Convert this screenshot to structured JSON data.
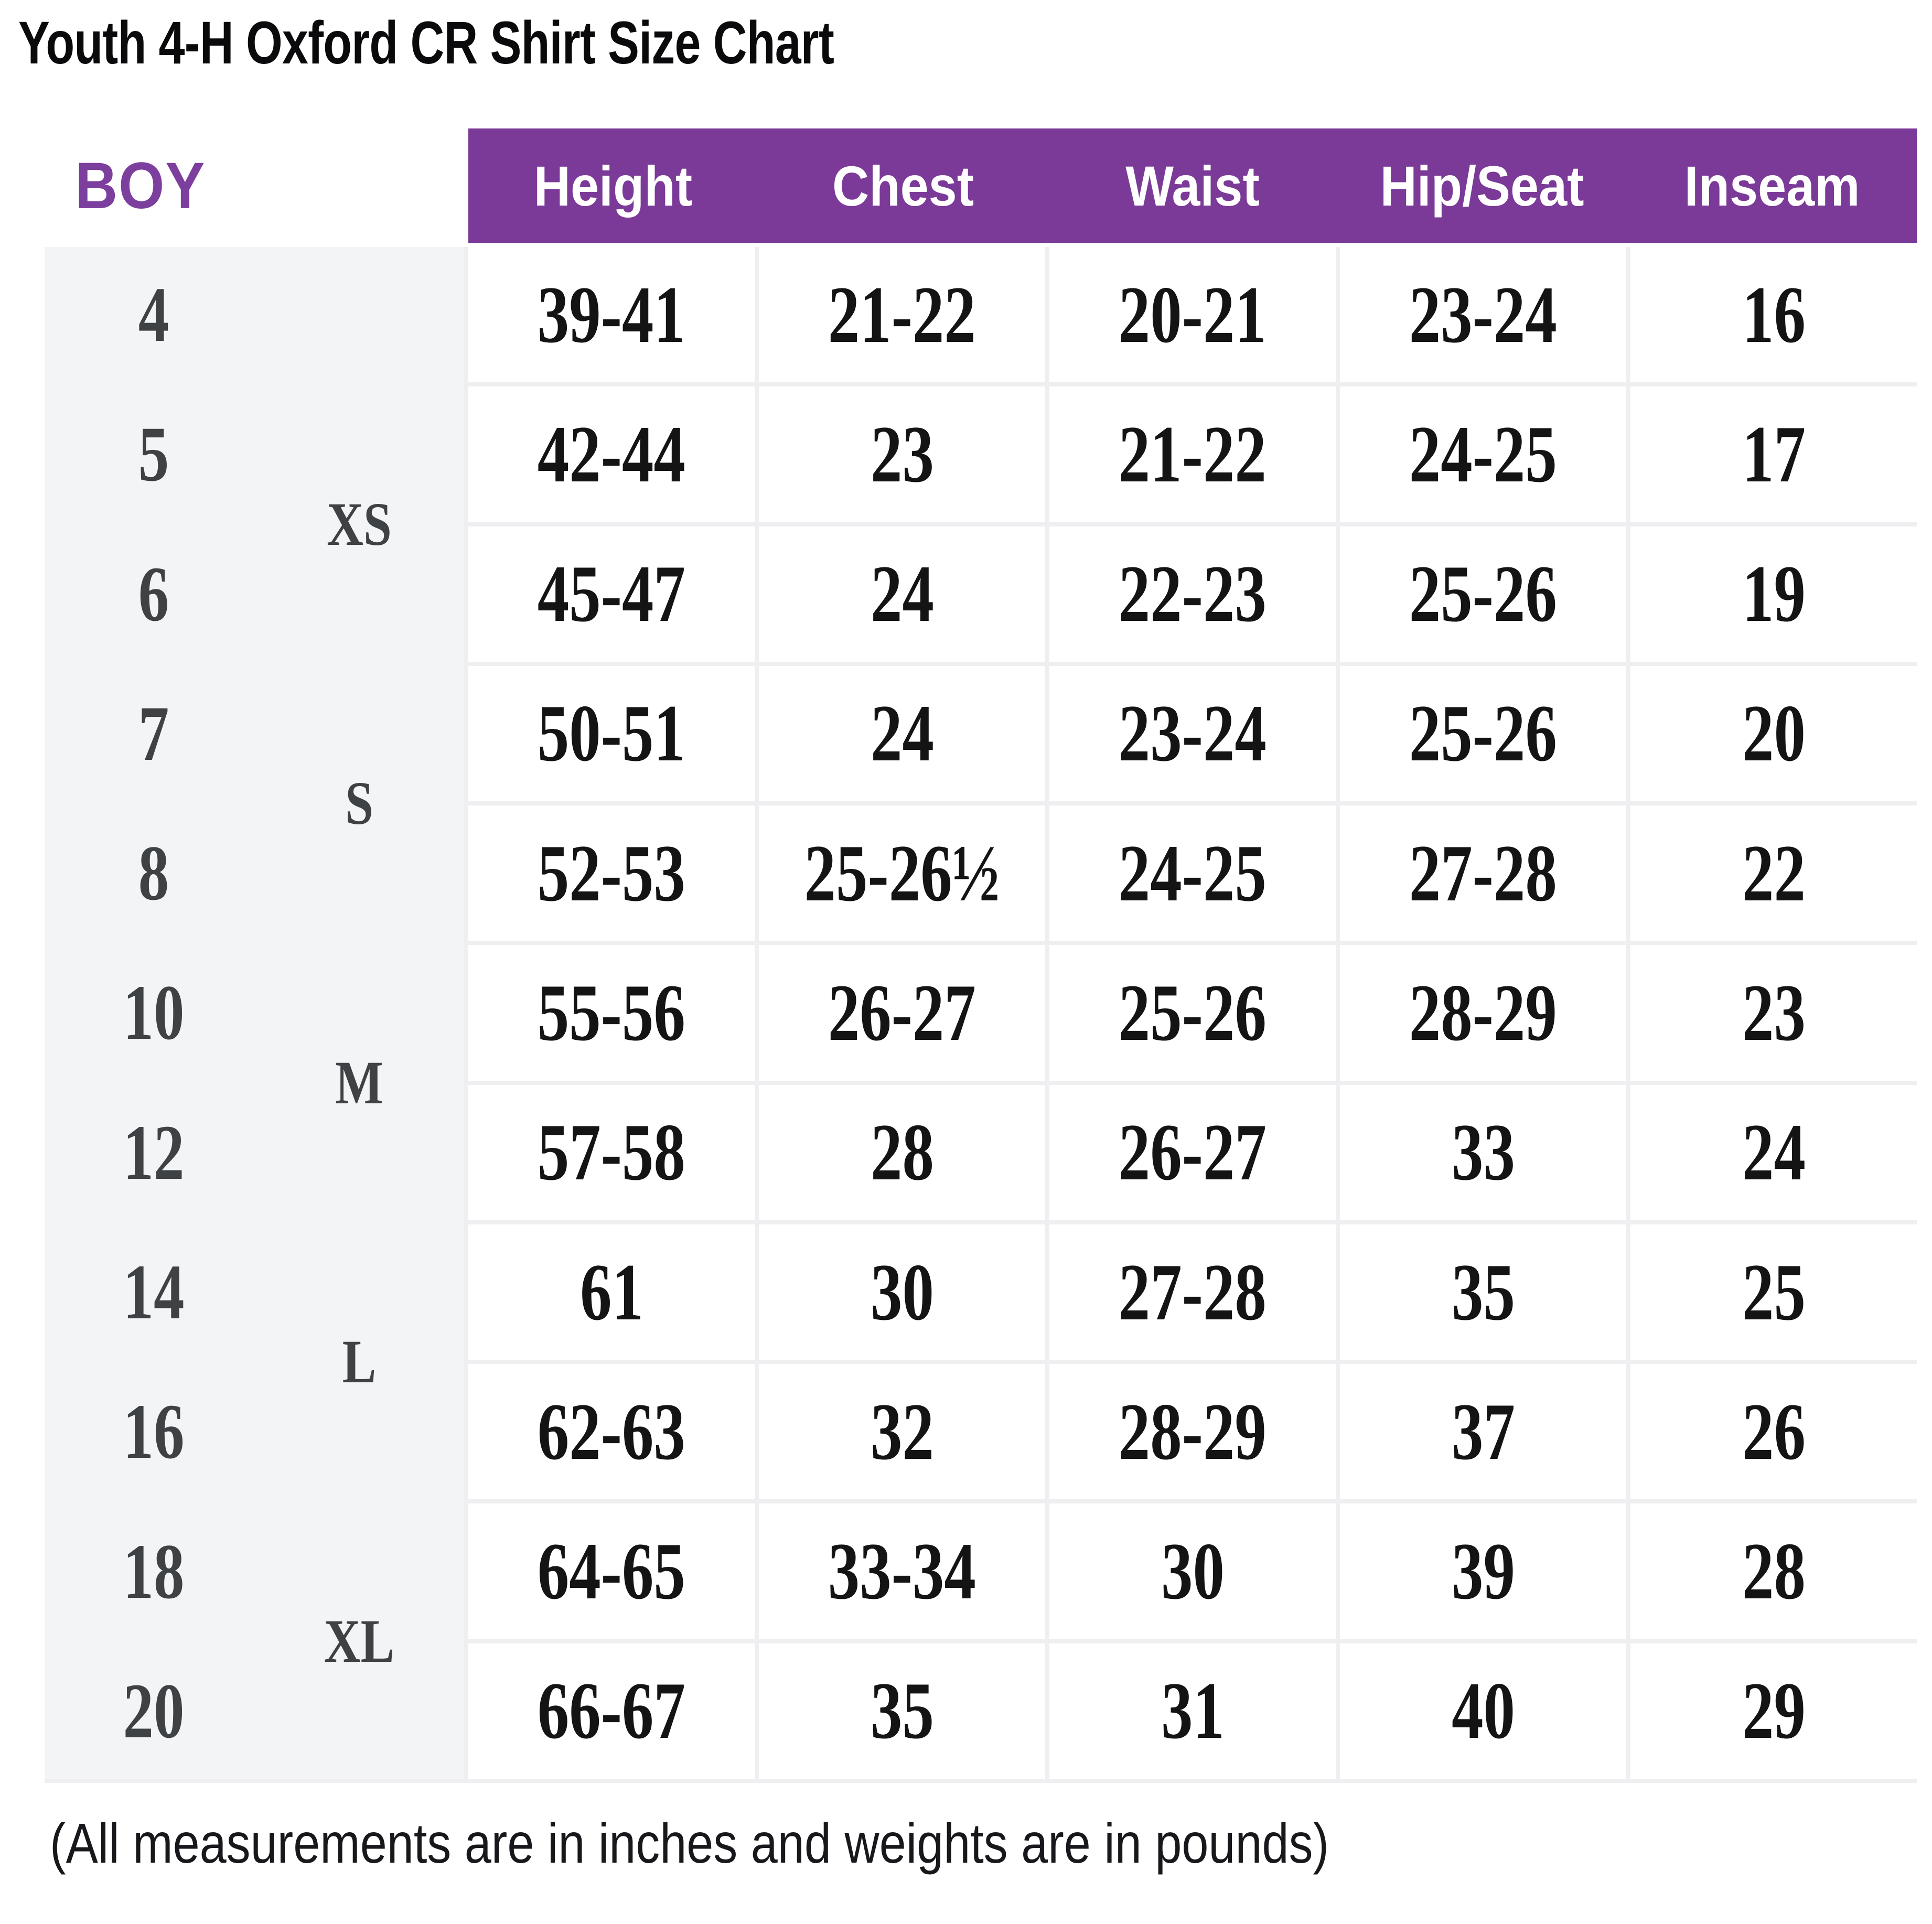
{
  "title": "Youth 4-H Oxford CR Shirt Size Chart",
  "footnote": "(All measurements are in inches and weights are in pounds)",
  "chart_data": {
    "type": "table",
    "gender_label": "BOY",
    "columns": [
      "Height",
      "Chest",
      "Waist",
      "Hip/Seat",
      "Inseam"
    ],
    "rows": [
      {
        "size": "4",
        "height": "39-41",
        "chest": "21-22",
        "waist": "20-21",
        "hip_seat": "23-24",
        "inseam": "16"
      },
      {
        "size": "5",
        "height": "42-44",
        "chest": "23",
        "waist": "21-22",
        "hip_seat": "24-25",
        "inseam": "17"
      },
      {
        "size": "6",
        "height": "45-47",
        "chest": "24",
        "waist": "22-23",
        "hip_seat": "25-26",
        "inseam": "19"
      },
      {
        "size": "7",
        "height": "50-51",
        "chest": "24",
        "waist": "23-24",
        "hip_seat": "25-26",
        "inseam": "20"
      },
      {
        "size": "8",
        "height": "52-53",
        "chest": "25-26½",
        "waist": "24-25",
        "hip_seat": "27-28",
        "inseam": "22"
      },
      {
        "size": "10",
        "height": "55-56",
        "chest": "26-27",
        "waist": "25-26",
        "hip_seat": "28-29",
        "inseam": "23"
      },
      {
        "size": "12",
        "height": "57-58",
        "chest": "28",
        "waist": "26-27",
        "hip_seat": "33",
        "inseam": "24"
      },
      {
        "size": "14",
        "height": "61",
        "chest": "30",
        "waist": "27-28",
        "hip_seat": "35",
        "inseam": "25"
      },
      {
        "size": "16",
        "height": "62-63",
        "chest": "32",
        "waist": "28-29",
        "hip_seat": "37",
        "inseam": "26"
      },
      {
        "size": "18",
        "height": "64-65",
        "chest": "33-34",
        "waist": "30",
        "hip_seat": "39",
        "inseam": "28"
      },
      {
        "size": "20",
        "height": "66-67",
        "chest": "35",
        "waist": "31",
        "hip_seat": "40",
        "inseam": "29"
      }
    ],
    "size_groups": [
      {
        "label": "XS",
        "spans_sizes": [
          "5",
          "6"
        ],
        "after_row": 2
      },
      {
        "label": "S",
        "spans_sizes": [
          "7",
          "8"
        ],
        "after_row": 4
      },
      {
        "label": "M",
        "spans_sizes": [
          "10",
          "12"
        ],
        "after_row": 6
      },
      {
        "label": "L",
        "spans_sizes": [
          "14",
          "16"
        ],
        "after_row": 8
      },
      {
        "label": "XL",
        "spans_sizes": [
          "18",
          "20"
        ],
        "after_row": 10
      }
    ],
    "layout_hints": {
      "grid": "on",
      "header_position": "top"
    },
    "colors": {
      "header_bg": "#7B3A98",
      "header_text": "#FFFFFF",
      "gender_text": "#7D3F9E",
      "size_column_bg": "#F3F4F6",
      "grid_line": "#EFEFF2",
      "cell_text": "#141414",
      "size_text": "#3F4245"
    }
  }
}
